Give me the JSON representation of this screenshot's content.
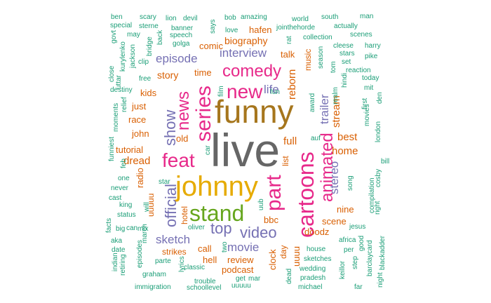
{
  "colors": {
    "teal": "#1B9E77",
    "orange": "#D95F02",
    "purple": "#7570B3",
    "magenta": "#E7298A",
    "green": "#66A61E",
    "gold": "#E6AB02",
    "brown": "#A6761D",
    "gray": "#666666"
  },
  "words": [
    {
      "text": "live",
      "color": "gray"
    },
    {
      "text": "funny",
      "color": "brown"
    },
    {
      "text": "johnny",
      "color": "gold"
    },
    {
      "text": "stand",
      "color": "green"
    },
    {
      "text": "part",
      "color": "magenta"
    },
    {
      "text": "cartoons",
      "color": "magenta"
    },
    {
      "text": "series",
      "color": "magenta"
    },
    {
      "text": "feat",
      "color": "magenta"
    },
    {
      "text": "new",
      "color": "magenta"
    },
    {
      "text": "comedy",
      "color": "magenta"
    },
    {
      "text": "news",
      "color": "magenta"
    },
    {
      "text": "animated",
      "color": "magenta"
    },
    {
      "text": "video",
      "color": "purple"
    },
    {
      "text": "top",
      "color": "purple"
    },
    {
      "text": "official",
      "color": "purple"
    },
    {
      "text": "show",
      "color": "purple"
    },
    {
      "text": "interview",
      "color": "purple"
    },
    {
      "text": "episode",
      "color": "purple"
    },
    {
      "text": "movie",
      "color": "purple"
    },
    {
      "text": "stereo",
      "color": "purple"
    },
    {
      "text": "sketch",
      "color": "purple"
    },
    {
      "text": "life",
      "color": "purple"
    },
    {
      "text": "trailer",
      "color": "purple"
    },
    {
      "text": "stream",
      "color": "orange"
    },
    {
      "text": "reborn",
      "color": "orange"
    },
    {
      "text": "story",
      "color": "orange"
    },
    {
      "text": "biography",
      "color": "orange"
    },
    {
      "text": "dread",
      "color": "orange"
    },
    {
      "text": "home",
      "color": "orange"
    },
    {
      "text": "best",
      "color": "orange"
    },
    {
      "text": "full",
      "color": "orange"
    },
    {
      "text": "tutorial",
      "color": "orange"
    },
    {
      "text": "just",
      "color": "orange"
    },
    {
      "text": "john",
      "color": "orange"
    },
    {
      "text": "kids",
      "color": "orange"
    },
    {
      "text": "race",
      "color": "orange"
    },
    {
      "text": "radio",
      "color": "orange"
    },
    {
      "text": "comic",
      "color": "orange"
    },
    {
      "text": "hafen",
      "color": "orange"
    },
    {
      "text": "talk",
      "color": "orange"
    },
    {
      "text": "time",
      "color": "orange"
    },
    {
      "text": "old",
      "color": "orange"
    },
    {
      "text": "call",
      "color": "orange"
    },
    {
      "text": "hell",
      "color": "orange"
    },
    {
      "text": "review",
      "color": "orange"
    },
    {
      "text": "podcast",
      "color": "orange"
    },
    {
      "text": "clock",
      "color": "orange"
    },
    {
      "text": "scene",
      "color": "orange"
    },
    {
      "text": "doodz",
      "color": "orange"
    },
    {
      "text": "nine",
      "color": "orange"
    },
    {
      "text": "bbc",
      "color": "orange"
    },
    {
      "text": "uuuu",
      "color": "orange"
    },
    {
      "text": "strikes",
      "color": "orange"
    },
    {
      "text": "hotel",
      "color": "orange"
    },
    {
      "text": "uuuuu",
      "color": "orange"
    },
    {
      "text": "music",
      "color": "orange"
    },
    {
      "text": "day",
      "color": "orange"
    },
    {
      "text": "list",
      "color": "orange"
    },
    {
      "text": "ben",
      "color": "teal"
    },
    {
      "text": "scary",
      "color": "teal"
    },
    {
      "text": "lion",
      "color": "teal"
    },
    {
      "text": "devil",
      "color": "teal"
    },
    {
      "text": "bob",
      "color": "teal"
    },
    {
      "text": "amazing",
      "color": "teal"
    },
    {
      "text": "world",
      "color": "teal"
    },
    {
      "text": "south",
      "color": "teal"
    },
    {
      "text": "man",
      "color": "teal"
    },
    {
      "text": "special",
      "color": "teal"
    },
    {
      "text": "sterne",
      "color": "teal"
    },
    {
      "text": "jointhehorde",
      "color": "teal"
    },
    {
      "text": "actually",
      "color": "teal"
    },
    {
      "text": "govt",
      "color": "teal"
    },
    {
      "text": "banner",
      "color": "teal"
    },
    {
      "text": "says",
      "color": "teal"
    },
    {
      "text": "love",
      "color": "teal"
    },
    {
      "text": "scenes",
      "color": "teal"
    },
    {
      "text": "may",
      "color": "teal"
    },
    {
      "text": "back",
      "color": "teal"
    },
    {
      "text": "speech",
      "color": "teal"
    },
    {
      "text": "collection",
      "color": "teal"
    },
    {
      "text": "kurylenko",
      "color": "teal"
    },
    {
      "text": "jackson",
      "color": "teal"
    },
    {
      "text": "golga",
      "color": "teal"
    },
    {
      "text": "rat",
      "color": "teal"
    },
    {
      "text": "cleese",
      "color": "teal"
    },
    {
      "text": "harry",
      "color": "teal"
    },
    {
      "text": "bridge",
      "color": "teal"
    },
    {
      "text": "season",
      "color": "teal"
    },
    {
      "text": "stars",
      "color": "teal"
    },
    {
      "text": "pike",
      "color": "teal"
    },
    {
      "text": "clip",
      "color": "teal"
    },
    {
      "text": "tom",
      "color": "teal"
    },
    {
      "text": "set",
      "color": "teal"
    },
    {
      "text": "close",
      "color": "teal"
    },
    {
      "text": "reaction",
      "color": "teal"
    },
    {
      "text": "uttar",
      "color": "teal"
    },
    {
      "text": "free",
      "color": "teal"
    },
    {
      "text": "today",
      "color": "teal"
    },
    {
      "text": "hindi",
      "color": "teal"
    },
    {
      "text": "mit",
      "color": "teal"
    },
    {
      "text": "destiny",
      "color": "teal"
    },
    {
      "text": "film",
      "color": "teal"
    },
    {
      "text": "fun",
      "color": "teal"
    },
    {
      "text": "realm",
      "color": "teal"
    },
    {
      "text": "award",
      "color": "teal"
    },
    {
      "text": "first",
      "color": "teal"
    },
    {
      "text": "den",
      "color": "teal"
    },
    {
      "text": "movies",
      "color": "teal"
    },
    {
      "text": "moments",
      "color": "teal"
    },
    {
      "text": "relief",
      "color": "teal"
    },
    {
      "text": "auf",
      "color": "teal"
    },
    {
      "text": "london",
      "color": "teal"
    },
    {
      "text": "funniest",
      "color": "teal"
    },
    {
      "text": "feb",
      "color": "teal"
    },
    {
      "text": "car",
      "color": "teal"
    },
    {
      "text": "bill",
      "color": "teal"
    },
    {
      "text": "cosby",
      "color": "teal"
    },
    {
      "text": "one",
      "color": "teal"
    },
    {
      "text": "song",
      "color": "teal"
    },
    {
      "text": "never",
      "color": "teal"
    },
    {
      "text": "star",
      "color": "teal"
    },
    {
      "text": "cast",
      "color": "teal"
    },
    {
      "text": "compilation",
      "color": "teal"
    },
    {
      "text": "king",
      "color": "teal"
    },
    {
      "text": "will",
      "color": "teal"
    },
    {
      "text": "right",
      "color": "teal"
    },
    {
      "text": "status",
      "color": "teal"
    },
    {
      "text": "uub",
      "color": "teal"
    },
    {
      "text": "facts",
      "color": "teal"
    },
    {
      "text": "big",
      "color": "teal"
    },
    {
      "text": "can",
      "color": "teal"
    },
    {
      "text": "mix",
      "color": "teal"
    },
    {
      "text": "jesus",
      "color": "teal"
    },
    {
      "text": "oliver",
      "color": "teal"
    },
    {
      "text": "march",
      "color": "teal"
    },
    {
      "text": "aka",
      "color": "teal"
    },
    {
      "text": "africa",
      "color": "teal"
    },
    {
      "text": "date",
      "color": "teal"
    },
    {
      "text": "episodes",
      "color": "teal"
    },
    {
      "text": "per",
      "color": "teal"
    },
    {
      "text": "two",
      "color": "teal"
    },
    {
      "text": "house",
      "color": "teal"
    },
    {
      "text": "good",
      "color": "teal"
    },
    {
      "text": "parte",
      "color": "teal"
    },
    {
      "text": "indian",
      "color": "teal"
    },
    {
      "text": "sketches",
      "color": "teal"
    },
    {
      "text": "retiring",
      "color": "teal"
    },
    {
      "text": "graham",
      "color": "teal"
    },
    {
      "text": "lyrics",
      "color": "teal"
    },
    {
      "text": "classic",
      "color": "teal"
    },
    {
      "text": "wedding",
      "color": "teal"
    },
    {
      "text": "keillor",
      "color": "teal"
    },
    {
      "text": "step",
      "color": "teal"
    },
    {
      "text": "barclaycard",
      "color": "teal"
    },
    {
      "text": "blackadder",
      "color": "teal"
    },
    {
      "text": "get",
      "color": "teal"
    },
    {
      "text": "mar",
      "color": "teal"
    },
    {
      "text": "dead",
      "color": "teal"
    },
    {
      "text": "pradesh",
      "color": "teal"
    },
    {
      "text": "trouble",
      "color": "teal"
    },
    {
      "text": "immigration",
      "color": "teal"
    },
    {
      "text": "schoollevel",
      "color": "teal"
    },
    {
      "text": "uuuuu ",
      "color": "teal"
    },
    {
      "text": "michael",
      "color": "teal"
    },
    {
      "text": "far",
      "color": "teal"
    },
    {
      "text": "night",
      "color": "teal"
    }
  ]
}
